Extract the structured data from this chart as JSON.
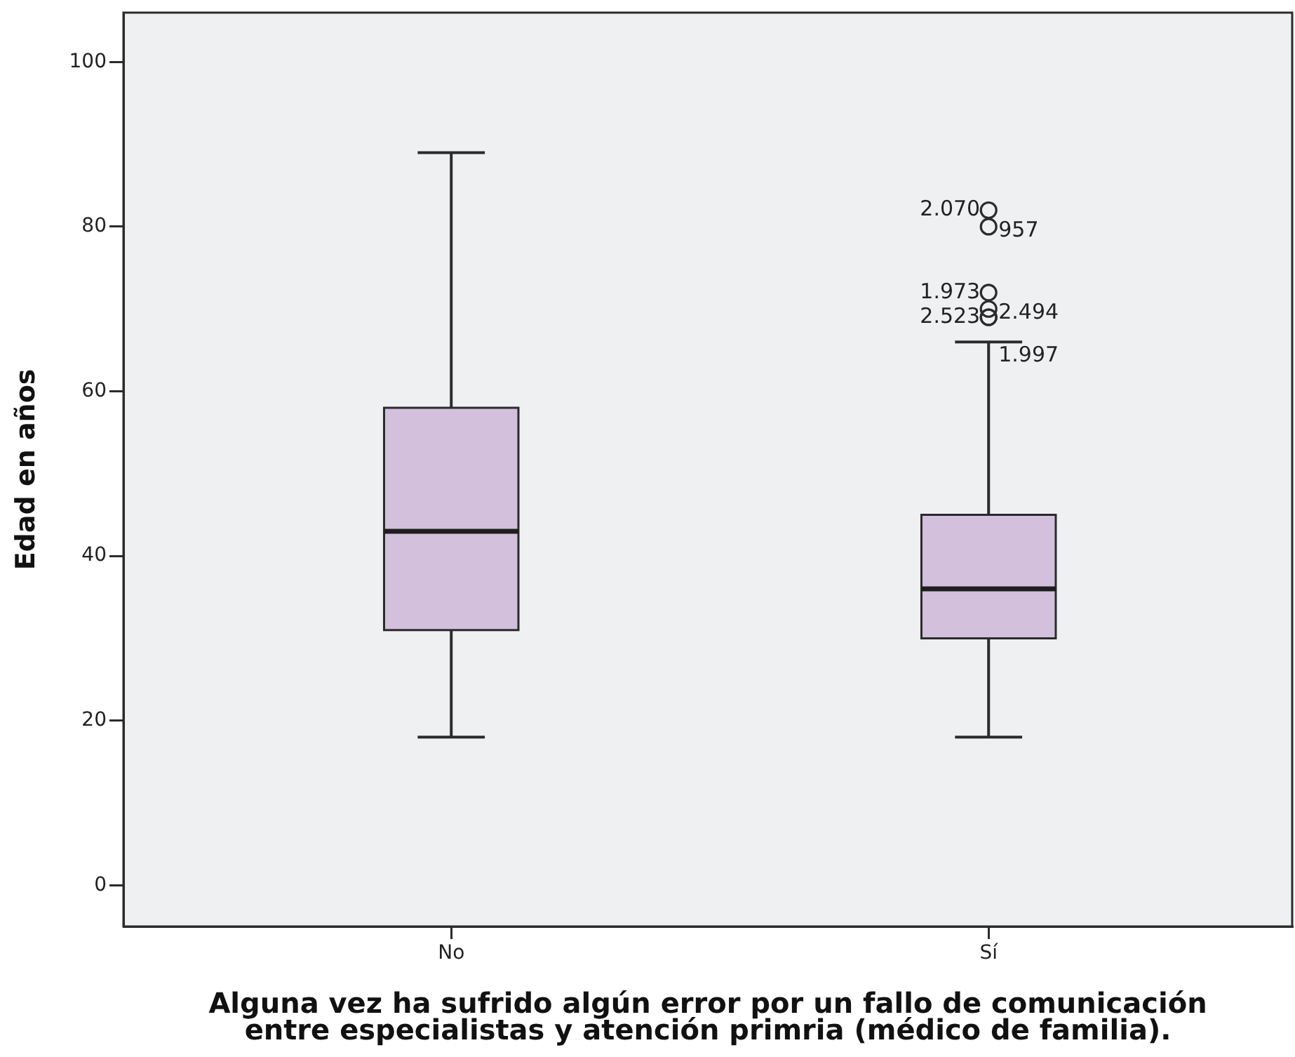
{
  "chart_data": {
    "type": "box",
    "categories": [
      "No",
      "Sí"
    ],
    "xlabel": "Alguna vez ha sufrido algún error por un fallo de comunicación entre especialistas y atención primria (médico de familia).",
    "ylabel": "Edad en años",
    "ylim": [
      -5,
      106
    ],
    "yticks": [
      0,
      20,
      40,
      60,
      80,
      100
    ],
    "series": [
      {
        "color": "#d3c0dd",
        "boxes": [
          {
            "low": 18,
            "q1": 31,
            "median": 43,
            "q3": 58,
            "high": 89
          },
          {
            "low": 18,
            "q1": 30,
            "median": 36,
            "q3": 45,
            "high": 66,
            "outliers": [
              82,
              80,
              72,
              70,
              69,
              69
            ]
          }
        ]
      }
    ],
    "annotations": [
      "2.070",
      "957",
      "1.973",
      "2.494",
      "2.523",
      "1.997"
    ]
  }
}
